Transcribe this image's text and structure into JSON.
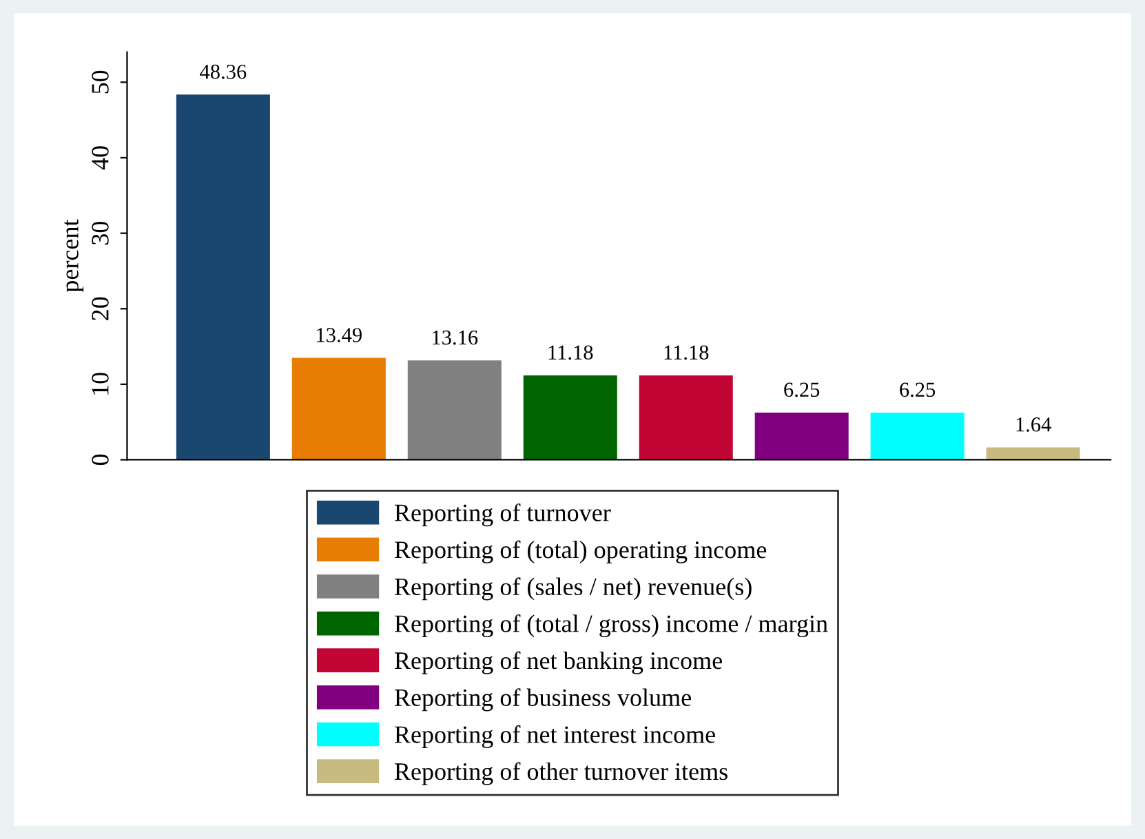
{
  "chart_data": {
    "type": "bar",
    "ylabel": "percent",
    "categories": [
      null,
      null,
      null,
      null,
      null,
      null,
      null,
      null
    ],
    "series": [
      {
        "name": "Reporting of turnover",
        "color": "#1a476f",
        "values": [
          48.36,
          null,
          null,
          null,
          null,
          null,
          null,
          null
        ]
      },
      {
        "name": "Reporting of (total) operating income",
        "color": "#e87d05",
        "values": [
          null,
          13.49,
          null,
          null,
          null,
          null,
          null,
          null
        ]
      },
      {
        "name": "Reporting of (sales / net) revenue(s)",
        "color": "#808080",
        "values": [
          null,
          null,
          13.16,
          null,
          null,
          null,
          null,
          null
        ]
      },
      {
        "name": "Reporting of (total / gross) income / margin",
        "color": "#006400",
        "values": [
          null,
          null,
          null,
          11.18,
          null,
          null,
          null,
          null
        ]
      },
      {
        "name": "Reporting of net banking income",
        "color": "#c10534",
        "values": [
          null,
          null,
          null,
          null,
          11.18,
          null,
          null,
          null
        ]
      },
      {
        "name": "Reporting of business volume",
        "color": "#800080",
        "values": [
          null,
          null,
          null,
          null,
          null,
          6.25,
          null,
          null
        ]
      },
      {
        "name": "Reporting of net interest income",
        "color": "#00ffff",
        "values": [
          null,
          null,
          null,
          null,
          null,
          null,
          6.25,
          null
        ]
      },
      {
        "name": "Reporting of other turnover items",
        "color": "#c8bb80",
        "values": [
          null,
          null,
          null,
          null,
          null,
          null,
          null,
          1.64
        ]
      }
    ],
    "ylim": [
      0,
      54
    ],
    "yticks": [
      0,
      10,
      20,
      30,
      40,
      50
    ],
    "data_labels": true,
    "grid": false,
    "legend": "bottom",
    "tick_labels": "y"
  }
}
